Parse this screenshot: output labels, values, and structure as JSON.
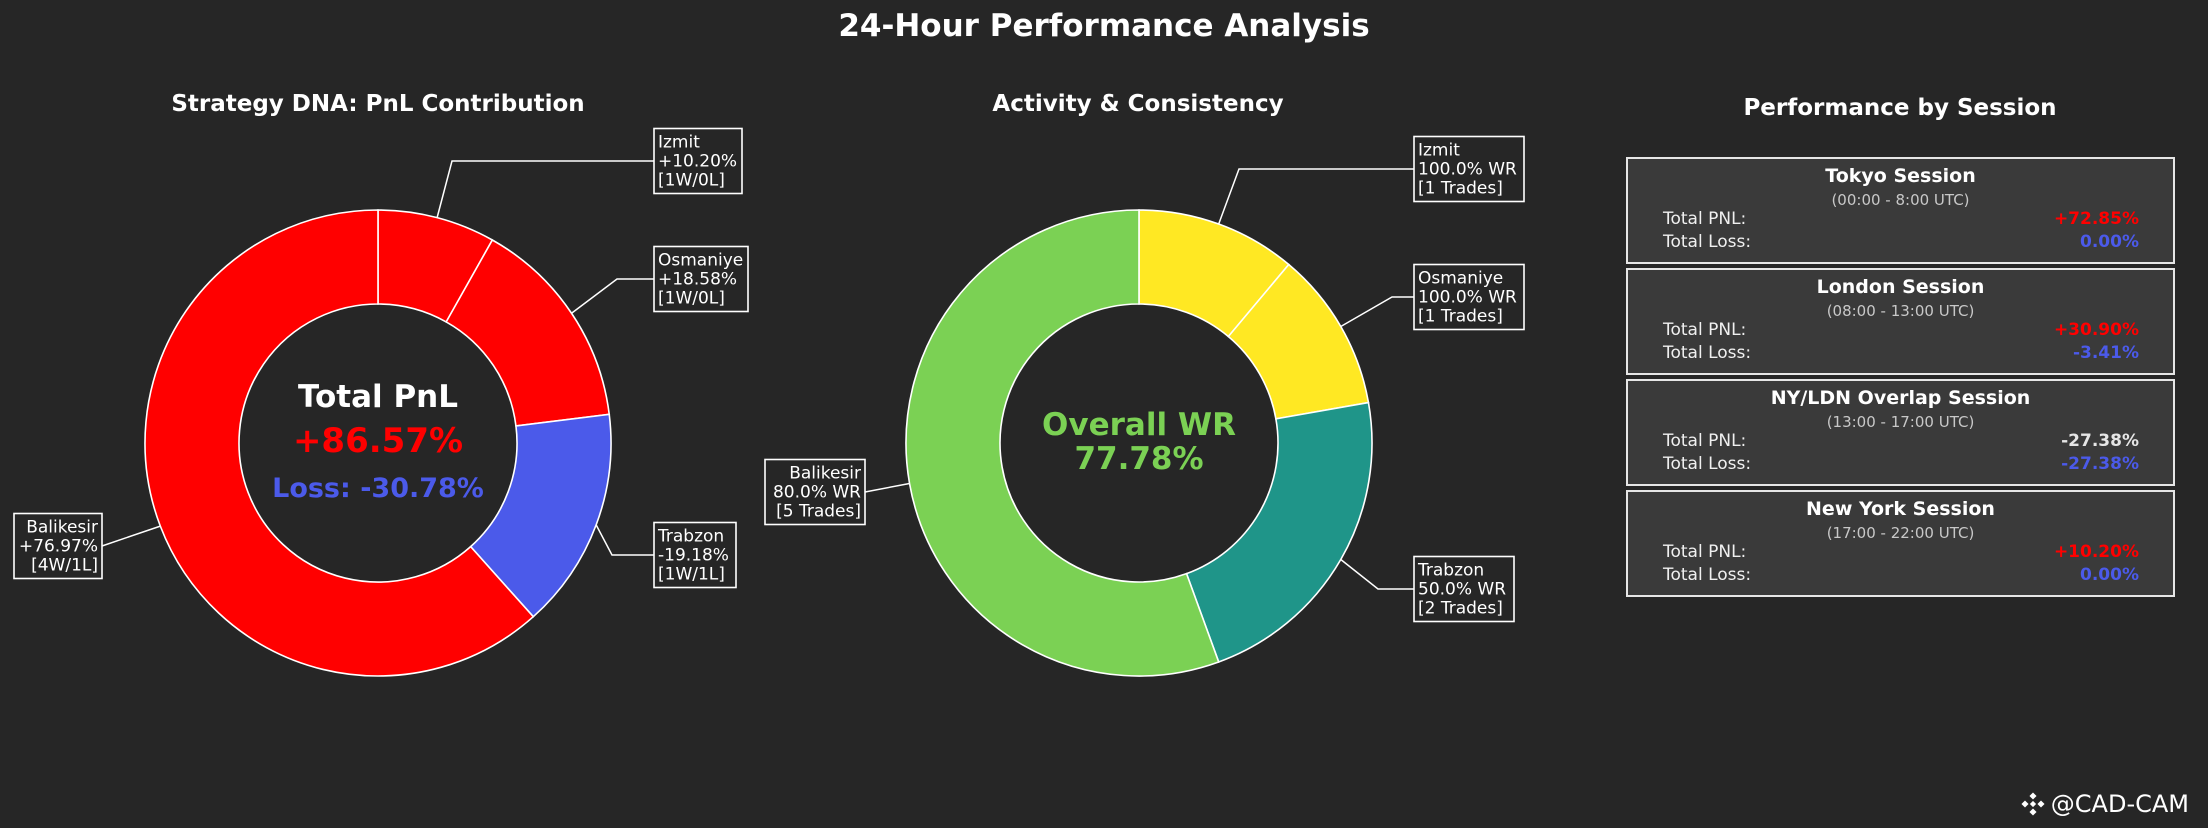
{
  "title": "24-Hour Performance Analysis",
  "panels": {
    "pnl_title": "Strategy DNA: PnL Contribution",
    "wr_title": "Activity & Consistency",
    "session_title": "Performance by Session"
  },
  "pnl_center": {
    "heading": "Total PnL",
    "total": "+86.57%",
    "loss": "Loss: -30.78%"
  },
  "wr_center": {
    "heading": "Overall WR",
    "value": "77.78%"
  },
  "colors": {
    "background": "#262626",
    "profit": "#ff0000",
    "loss": "#4b5aea",
    "wr_izmit": "#ffe823",
    "wr_osmaniye": "#ffe823",
    "wr_trabzon": "#1f9589",
    "wr_balikesir": "#7bd154",
    "neutral": "#e6e6e6"
  },
  "chart_data": [
    {
      "type": "pie",
      "title": "Strategy DNA: PnL Contribution",
      "donut": true,
      "start_angle": "top",
      "direction": "clockwise",
      "slices": [
        {
          "label": "Izmit",
          "value": 10.2,
          "pct_label": "+10.20%",
          "record": "[1W/0L]",
          "color": "#ff0000",
          "callout": "right"
        },
        {
          "label": "Osmaniye",
          "value": 18.58,
          "pct_label": "+18.58%",
          "record": "[1W/0L]",
          "color": "#ff0000",
          "callout": "right"
        },
        {
          "label": "Trabzon",
          "value": 19.18,
          "pct_label": "-19.18%",
          "record": "[1W/1L]",
          "color": "#4b5aea",
          "callout": "right"
        },
        {
          "label": "Balikesir",
          "value": 76.97,
          "pct_label": "+76.97%",
          "record": "[4W/1L]",
          "color": "#ff0000",
          "callout": "left"
        }
      ]
    },
    {
      "type": "pie",
      "title": "Activity & Consistency",
      "donut": true,
      "start_angle": "top",
      "direction": "clockwise",
      "slices": [
        {
          "label": "Izmit",
          "value": 1,
          "wr": "100.0% WR",
          "trades": "[1 Trades]",
          "color": "#ffe823",
          "callout": "right"
        },
        {
          "label": "Osmaniye",
          "value": 1,
          "wr": "100.0% WR",
          "trades": "[1 Trades]",
          "color": "#ffe823",
          "callout": "right"
        },
        {
          "label": "Trabzon",
          "value": 2,
          "wr": "50.0% WR",
          "trades": "[2 Trades]",
          "color": "#1f9589",
          "callout": "right"
        },
        {
          "label": "Balikesir",
          "value": 5,
          "wr": "80.0% WR",
          "trades": "[5 Trades]",
          "color": "#7bd154",
          "callout": "left"
        }
      ]
    },
    {
      "type": "table",
      "title": "Performance by Session",
      "sessions": [
        {
          "name": "Tokyo Session",
          "time": "(00:00 - 8:00 UTC)",
          "pnl_label": "Total PNL:",
          "pnl": "+72.85%",
          "pnl_color": "#ff0000",
          "loss_label": "Total Loss:",
          "loss": "0.00%",
          "loss_color": "#4b5aea"
        },
        {
          "name": "London Session",
          "time": "(08:00 - 13:00 UTC)",
          "pnl_label": "Total PNL:",
          "pnl": "+30.90%",
          "pnl_color": "#ff0000",
          "loss_label": "Total Loss:",
          "loss": "-3.41%",
          "loss_color": "#4b5aea"
        },
        {
          "name": "NY/LDN Overlap Session",
          "time": "(13:00 - 17:00 UTC)",
          "pnl_label": "Total PNL:",
          "pnl": "-27.38%",
          "pnl_color": "#e6e6e6",
          "loss_label": "Total Loss:",
          "loss": "-27.38%",
          "loss_color": "#4b5aea"
        },
        {
          "name": "New York Session",
          "time": "(17:00 - 22:00 UTC)",
          "pnl_label": "Total PNL:",
          "pnl": "+10.20%",
          "pnl_color": "#ff0000",
          "loss_label": "Total Loss:",
          "loss": "0.00%",
          "loss_color": "#4b5aea"
        }
      ]
    }
  ],
  "watermark": {
    "icon": "binance-diamond-icon",
    "text": "@CAD-CAM"
  }
}
